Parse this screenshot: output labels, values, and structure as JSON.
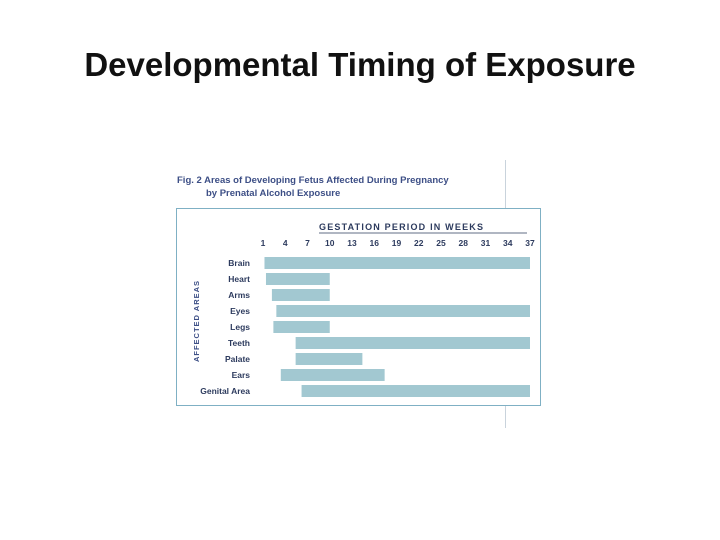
{
  "slide": {
    "title": "Developmental Timing of Exposure"
  },
  "figure": {
    "caption_prefix": "Fig. 2",
    "caption_line1": "Areas of Developing Fetus Affected During Pregnancy",
    "caption_line2": "by Prenatal Alcohol Exposure"
  },
  "colors": {
    "bar": "#a2c8d1",
    "frame": "#7fb0c4",
    "caption": "#3d4f86",
    "axis_text": "#2d3b5e"
  },
  "chart_data": {
    "type": "bar",
    "orientation": "horizontal-range",
    "xlabel": "GESTATION PERIOD IN WEEKS",
    "ylabel": "AFFECTED AREAS",
    "x_ticks": [
      1,
      4,
      7,
      10,
      13,
      16,
      19,
      22,
      25,
      28,
      31,
      34,
      37
    ],
    "xlim": [
      1,
      37
    ],
    "grid": false,
    "categories": [
      "Brain",
      "Heart",
      "Arms",
      "Eyes",
      "Legs",
      "Teeth",
      "Palate",
      "Ears",
      "Genital Area"
    ],
    "ranges": [
      {
        "start": 1.2,
        "end": 37
      },
      {
        "start": 1.4,
        "end": 10
      },
      {
        "start": 2.2,
        "end": 10
      },
      {
        "start": 2.8,
        "end": 37
      },
      {
        "start": 2.4,
        "end": 10
      },
      {
        "start": 5.4,
        "end": 37
      },
      {
        "start": 5.4,
        "end": 14.4
      },
      {
        "start": 3.4,
        "end": 17.4
      },
      {
        "start": 6.2,
        "end": 37
      }
    ]
  }
}
